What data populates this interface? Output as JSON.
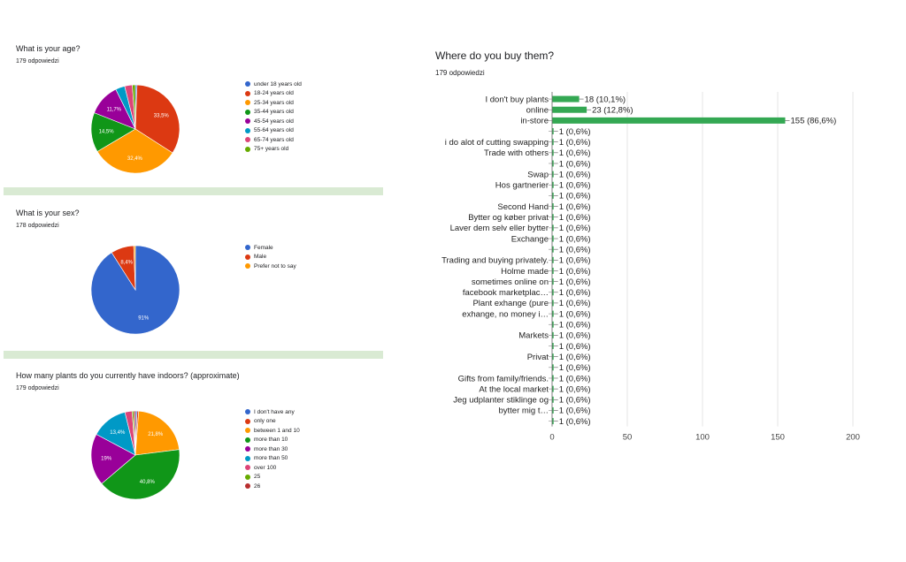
{
  "questions": [
    {
      "title": "What is your age?",
      "responses": "179 odpowiedzi"
    },
    {
      "title": "What is your sex?",
      "responses": "178 odpowiedzi"
    },
    {
      "title": "How many plants do you currently have indoors? (approximate)",
      "responses": "179 odpowiedzi"
    },
    {
      "title": "Where do you buy them?",
      "responses": "179 odpowiedzi"
    }
  ],
  "chart_data": [
    {
      "type": "pie",
      "title": "What is your age?",
      "categories": [
        "under 18 years old",
        "18-24 years old",
        "25-34 years old",
        "35-44 years old",
        "45-54 years old",
        "55-64 years old",
        "65-74 years old",
        "75+ years old"
      ],
      "values": [
        0.6,
        33.5,
        32.4,
        14.5,
        11.7,
        3.4,
        2.8,
        1.1
      ],
      "slice_labels": [
        "",
        "33,5%",
        "32,4%",
        "14,5%",
        "11,7%",
        "",
        "",
        ""
      ],
      "colors": [
        "#3366cc",
        "#dc3912",
        "#ff9900",
        "#109618",
        "#990099",
        "#0099c6",
        "#dd4477",
        "#66aa00"
      ],
      "legend": "right"
    },
    {
      "type": "pie",
      "title": "What is your sex?",
      "categories": [
        "Female",
        "Male",
        "Prefer not to say"
      ],
      "values": [
        91,
        8.4,
        0.6
      ],
      "slice_labels": [
        "91%",
        "8,4%",
        ""
      ],
      "colors": [
        "#3366cc",
        "#dc3912",
        "#ff9900"
      ],
      "legend": "right"
    },
    {
      "type": "pie",
      "title": "How many plants do you currently have indoors? (approximate)",
      "categories": [
        "I don't have any",
        "only one",
        "between 1 and 10",
        "more than 10",
        "more than 30",
        "more than 50",
        "over 100",
        "25",
        "26"
      ],
      "values": [
        0.6,
        0.6,
        21.8,
        40.8,
        19,
        13.4,
        2.6,
        0.6,
        0.6
      ],
      "slice_labels": [
        "",
        "",
        "21,8%",
        "40,8%",
        "19%",
        "13,4%",
        "",
        "",
        ""
      ],
      "colors": [
        "#3366cc",
        "#dc3912",
        "#ff9900",
        "#109618",
        "#990099",
        "#0099c6",
        "#dd4477",
        "#66aa00",
        "#b82e2e"
      ],
      "legend": "right"
    },
    {
      "type": "bar",
      "orientation": "horizontal",
      "title": "Where do you buy them?",
      "categories": [
        "I don't buy plants",
        "online",
        "in-store",
        "",
        "i do alot of cutting swapping",
        "Trade with others",
        "",
        "Swap",
        "Hos gartnerier",
        "",
        "Second Hand",
        "Bytter og køber privat",
        "Laver dem selv eller bytter",
        "Exchange",
        "",
        "Trading and buying privately.",
        "Holme made",
        "sometimes online on",
        "facebook marketplac…",
        "Plant exhange (pure",
        "exhange, no money i…",
        "",
        "Markets",
        "",
        "Privat",
        "",
        "Gifts from family/friends.",
        "At the local market",
        "Jeg udplanter stiklinge og",
        "bytter mig t…",
        ""
      ],
      "values": [
        18,
        23,
        155,
        1,
        1,
        1,
        1,
        1,
        1,
        1,
        1,
        1,
        1,
        1,
        1,
        1,
        1,
        1,
        1,
        1,
        1,
        1,
        1,
        1,
        1,
        1,
        1,
        1,
        1,
        1,
        1
      ],
      "value_labels": [
        "18 (10,1%)",
        "23 (12,8%)",
        "155 (86,6%)",
        "1 (0,6%)",
        "1 (0,6%)",
        "1 (0,6%)",
        "1 (0,6%)",
        "1 (0,6%)",
        "1 (0,6%)",
        "1 (0,6%)",
        "1 (0,6%)",
        "1 (0,6%)",
        "1 (0,6%)",
        "1 (0,6%)",
        "1 (0,6%)",
        "1 (0,6%)",
        "1 (0,6%)",
        "1 (0,6%)",
        "1 (0,6%)",
        "1 (0,6%)",
        "1 (0,6%)",
        "1 (0,6%)",
        "1 (0,6%)",
        "1 (0,6%)",
        "1 (0,6%)",
        "1 (0,6%)",
        "1 (0,6%)",
        "1 (0,6%)",
        "1 (0,6%)",
        "1 (0,6%)",
        "1 (0,6%)"
      ],
      "xlim": [
        0,
        200
      ],
      "xticks": [
        0,
        50,
        100,
        150,
        200
      ],
      "color": "#34a853",
      "grid": true
    }
  ]
}
